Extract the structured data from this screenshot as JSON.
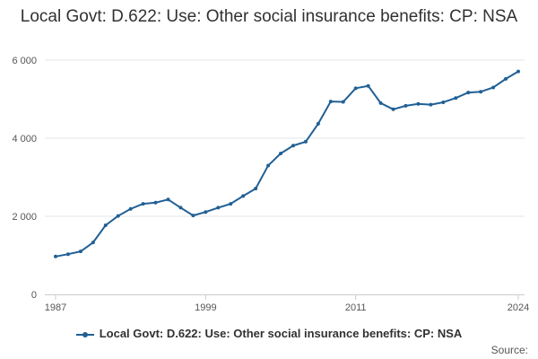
{
  "chart_data": {
    "type": "line",
    "title": "Local Govt: D.622: Use: Other social insurance benefits: CP: NSA",
    "xlabel": "",
    "ylabel": "",
    "x_tick_labels": [
      "1987",
      "1999",
      "2011",
      "2024"
    ],
    "y_tick_labels": [
      "0",
      "2 000",
      "4 000",
      "6 000"
    ],
    "y_ticks": [
      0,
      2000,
      4000,
      6000
    ],
    "xlim": [
      1987,
      2024
    ],
    "ylim": [
      0,
      6000
    ],
    "grid": true,
    "legend_position": "bottom",
    "series": [
      {
        "name": "Local Govt: D.622: Use: Other social insurance benefits: CP: NSA",
        "color": "#206095",
        "x": [
          1987,
          1988,
          1989,
          1990,
          1991,
          1992,
          1993,
          1994,
          1995,
          1996,
          1997,
          1998,
          1999,
          2000,
          2001,
          2002,
          2003,
          2004,
          2005,
          2006,
          2007,
          2008,
          2009,
          2010,
          2011,
          2012,
          2013,
          2014,
          2015,
          2016,
          2017,
          2018,
          2019,
          2020,
          2021,
          2022,
          2023,
          2024
        ],
        "values": [
          970,
          1030,
          1100,
          1330,
          1770,
          2010,
          2190,
          2320,
          2350,
          2430,
          2220,
          2020,
          2110,
          2220,
          2320,
          2520,
          2710,
          3300,
          3610,
          3810,
          3910,
          4370,
          4940,
          4930,
          5280,
          5340,
          4900,
          4740,
          4830,
          4880,
          4860,
          4920,
          5030,
          5170,
          5190,
          5300,
          5520,
          5710
        ]
      }
    ]
  },
  "legend": {
    "label": "Local Govt: D.622: Use: Other social insurance benefits: CP: NSA"
  },
  "source_label": "Source:"
}
